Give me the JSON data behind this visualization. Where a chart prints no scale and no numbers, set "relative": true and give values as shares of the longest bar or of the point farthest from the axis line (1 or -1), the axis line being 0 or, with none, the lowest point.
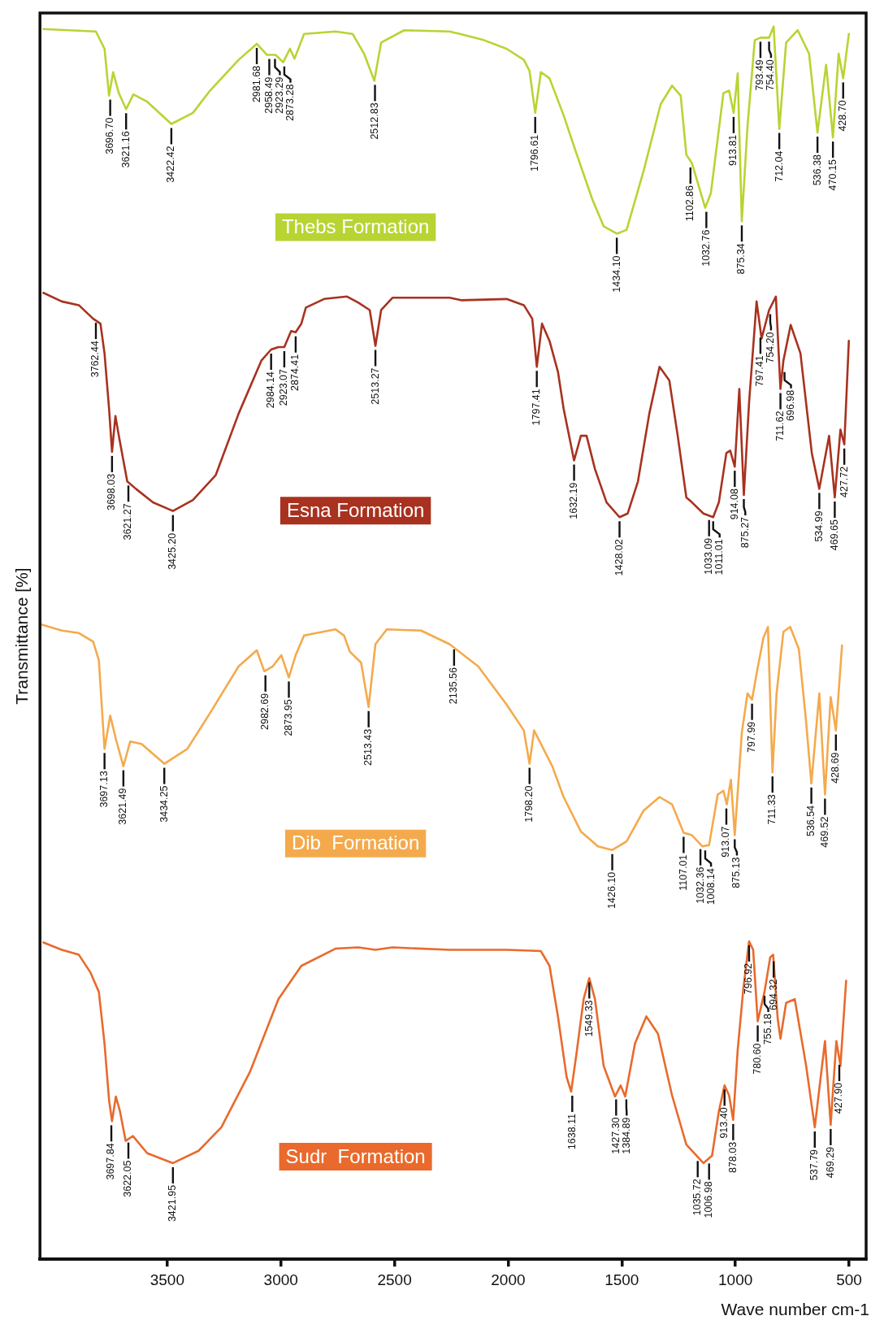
{
  "chart_data": {
    "type": "line",
    "relative": true,
    "xlabel": "Wave number cm-1",
    "ylabel": "Transmittance [%]",
    "xlim": [
      4060,
      425
    ],
    "xticks": [
      3500,
      3000,
      2500,
      2000,
      1500,
      1000,
      500
    ],
    "grid": false,
    "legend": false,
    "series": [
      {
        "name": "Thebs Formation",
        "color": "#b7d433",
        "x": [
          4045,
          3814,
          3776,
          3756,
          3738,
          3713,
          3681,
          3649,
          3588,
          3482,
          3387,
          3312,
          3186,
          3106,
          3061,
          3023,
          2990,
          2960,
          2940,
          2898,
          2760,
          2684,
          2634,
          2589,
          2559,
          2458,
          2258,
          2212,
          2107,
          2007,
          1931,
          1906,
          1881,
          1856,
          1818,
          1756,
          1705,
          1630,
          1580,
          1522,
          1479,
          1404,
          1329,
          1279,
          1241,
          1216,
          1191,
          1133,
          1108,
          1053,
          1028,
          1008,
          990,
          972,
          947,
          915,
          890,
          852,
          832,
          807,
          777,
          726,
          676,
          639,
          601,
          571,
          546,
          526,
          501
        ],
        "values": [
          0.998,
          0.996,
          0.982,
          0.944,
          0.963,
          0.946,
          0.933,
          0.945,
          0.939,
          0.921,
          0.93,
          0.948,
          0.973,
          0.986,
          0.977,
          0.977,
          0.971,
          0.982,
          0.974,
          0.994,
          0.996,
          0.994,
          0.978,
          0.956,
          0.987,
          0.997,
          0.996,
          0.994,
          0.989,
          0.982,
          0.973,
          0.964,
          0.93,
          0.963,
          0.958,
          0.928,
          0.9,
          0.86,
          0.838,
          0.832,
          0.835,
          0.883,
          0.937,
          0.952,
          0.944,
          0.896,
          0.889,
          0.853,
          0.865,
          0.946,
          0.948,
          0.93,
          0.962,
          0.842,
          0.919,
          0.989,
          0.991,
          0.991,
          1.0,
          0.917,
          0.987,
          0.997,
          0.978,
          0.914,
          0.969,
          0.91,
          0.978,
          0.958,
          0.994
        ]
      },
      {
        "name": "Esna Formation",
        "color": "#a8321f",
        "x": [
          4045,
          3964,
          3889,
          3826,
          3794,
          3776,
          3756,
          3743,
          3728,
          3713,
          3676,
          3638,
          3563,
          3475,
          3387,
          3287,
          3186,
          3086,
          3043,
          3011,
          2985,
          2955,
          2935,
          2910,
          2890,
          2810,
          2709,
          2659,
          2609,
          2584,
          2559,
          2509,
          2258,
          2207,
          2007,
          1931,
          1894,
          1874,
          1851,
          1818,
          1781,
          1756,
          1710,
          1680,
          1655,
          1618,
          1567,
          1510,
          1474,
          1429,
          1379,
          1334,
          1291,
          1254,
          1216,
          1191,
          1141,
          1098,
          1073,
          1040,
          1023,
          1003,
          983,
          963,
          940,
          907,
          885,
          852,
          822,
          802,
          789,
          757,
          714,
          664,
          631,
          588,
          563,
          538,
          521,
          501
        ],
        "values": [
          0.784,
          0.777,
          0.774,
          0.763,
          0.759,
          0.735,
          0.69,
          0.655,
          0.684,
          0.668,
          0.631,
          0.625,
          0.614,
          0.607,
          0.616,
          0.636,
          0.686,
          0.729,
          0.738,
          0.74,
          0.74,
          0.753,
          0.752,
          0.759,
          0.772,
          0.779,
          0.781,
          0.776,
          0.77,
          0.741,
          0.77,
          0.78,
          0.78,
          0.778,
          0.779,
          0.774,
          0.763,
          0.724,
          0.759,
          0.745,
          0.72,
          0.69,
          0.648,
          0.668,
          0.668,
          0.641,
          0.614,
          0.602,
          0.605,
          0.631,
          0.686,
          0.724,
          0.713,
          0.668,
          0.618,
          0.614,
          0.605,
          0.602,
          0.614,
          0.654,
          0.656,
          0.643,
          0.706,
          0.62,
          0.695,
          0.777,
          0.747,
          0.77,
          0.781,
          0.706,
          0.729,
          0.758,
          0.735,
          0.654,
          0.625,
          0.668,
          0.618,
          0.673,
          0.661,
          0.745
        ]
      },
      {
        "name": "Dib  Formation",
        "color": "#f4aa4c",
        "x": [
          4055,
          3964,
          3889,
          3826,
          3801,
          3776,
          3751,
          3726,
          3693,
          3663,
          3613,
          3513,
          3412,
          3312,
          3186,
          3106,
          3073,
          3036,
          2998,
          2965,
          2935,
          2898,
          2760,
          2722,
          2697,
          2647,
          2614,
          2584,
          2534,
          2383,
          2258,
          2132,
          2007,
          1931,
          1906,
          1886,
          1806,
          1756,
          1680,
          1605,
          1542,
          1479,
          1404,
          1334,
          1279,
          1228,
          1191,
          1146,
          1116,
          1078,
          1053,
          1038,
          1020,
          1003,
          972,
          947,
          927,
          907,
          877,
          857,
          837,
          819,
          789,
          759,
          721,
          689,
          666,
          631,
          606,
          581,
          558,
          531
        ],
        "values": [
          0.515,
          0.51,
          0.508,
          0.501,
          0.486,
          0.414,
          0.441,
          0.422,
          0.4,
          0.42,
          0.418,
          0.402,
          0.414,
          0.443,
          0.481,
          0.494,
          0.477,
          0.481,
          0.49,
          0.472,
          0.49,
          0.506,
          0.511,
          0.506,
          0.493,
          0.484,
          0.448,
          0.499,
          0.511,
          0.51,
          0.499,
          0.481,
          0.45,
          0.429,
          0.402,
          0.429,
          0.4,
          0.375,
          0.347,
          0.335,
          0.332,
          0.339,
          0.364,
          0.375,
          0.369,
          0.346,
          0.344,
          0.335,
          0.336,
          0.377,
          0.38,
          0.369,
          0.389,
          0.344,
          0.427,
          0.459,
          0.454,
          0.475,
          0.504,
          0.513,
          0.395,
          0.459,
          0.509,
          0.513,
          0.495,
          0.436,
          0.386,
          0.459,
          0.377,
          0.456,
          0.429,
          0.498
        ]
      },
      {
        "name": "Sudr  Formation",
        "color": "#e96a2c",
        "x": [
          4045,
          3964,
          3889,
          3839,
          3801,
          3776,
          3756,
          3743,
          3726,
          3708,
          3683,
          3651,
          3588,
          3475,
          3362,
          3262,
          3136,
          3011,
          2910,
          2760,
          2659,
          2584,
          2509,
          2258,
          2007,
          1856,
          1818,
          1781,
          1743,
          1723,
          1700,
          1668,
          1643,
          1618,
          1580,
          1530,
          1505,
          1485,
          1442,
          1392,
          1341,
          1279,
          1216,
          1141,
          1103,
          1073,
          1048,
          1028,
          1010,
          990,
          965,
          940,
          922,
          902,
          872,
          847,
          834,
          814,
          802,
          777,
          739,
          689,
          651,
          606,
          581,
          556,
          538,
          513
        ],
        "values": [
          0.257,
          0.251,
          0.247,
          0.233,
          0.217,
          0.175,
          0.129,
          0.112,
          0.132,
          0.12,
          0.096,
          0.1,
          0.086,
          0.078,
          0.088,
          0.107,
          0.152,
          0.211,
          0.238,
          0.252,
          0.253,
          0.251,
          0.253,
          0.251,
          0.251,
          0.25,
          0.238,
          0.197,
          0.148,
          0.136,
          0.166,
          0.211,
          0.228,
          0.211,
          0.157,
          0.132,
          0.141,
          0.132,
          0.175,
          0.197,
          0.183,
          0.133,
          0.093,
          0.078,
          0.084,
          0.12,
          0.141,
          0.133,
          0.113,
          0.17,
          0.22,
          0.258,
          0.251,
          0.193,
          0.217,
          0.245,
          0.247,
          0.195,
          0.179,
          0.208,
          0.211,
          0.157,
          0.107,
          0.177,
          0.109,
          0.177,
          0.157,
          0.226
        ]
      }
    ],
    "annotations": [
      {
        "text": "3696.70",
        "x": 3751,
        "y": 0.944
      },
      {
        "text": "3621.16",
        "x": 3681,
        "y": 0.933
      },
      {
        "text": "3422.42",
        "x": 3482,
        "y": 0.921
      },
      {
        "text": "2981.68",
        "x": 3106,
        "y": 0.986
      },
      {
        "text": "2958.49",
        "x": 3051,
        "y": 0.977
      },
      {
        "text": "2923.29",
        "x": 3026,
        "y": 0.977
      },
      {
        "text": "2873.28",
        "x": 2985,
        "y": 0.971
      },
      {
        "text": "2512.83",
        "x": 2586,
        "y": 0.956
      },
      {
        "text": "1796.61",
        "x": 1881,
        "y": 0.93
      },
      {
        "text": "1434.10",
        "x": 1522,
        "y": 0.832
      },
      {
        "text": "1102.86",
        "x": 1198,
        "y": 0.889
      },
      {
        "text": "1032.76",
        "x": 1128,
        "y": 0.853
      },
      {
        "text": "913.81",
        "x": 1008,
        "y": 0.93
      },
      {
        "text": "875.34",
        "x": 972,
        "y": 0.842
      },
      {
        "text": "793.49",
        "x": 890,
        "y": 0.991
      },
      {
        "text": "754.40",
        "x": 852,
        "y": 0.991
      },
      {
        "text": "712.04",
        "x": 807,
        "y": 0.917
      },
      {
        "text": "536.38",
        "x": 639,
        "y": 0.914
      },
      {
        "text": "470.15",
        "x": 571,
        "y": 0.91
      },
      {
        "text": "428.70",
        "x": 526,
        "y": 0.958
      },
      {
        "text": "3762.44",
        "x": 3814,
        "y": 0.763
      },
      {
        "text": "3698.03",
        "x": 3743,
        "y": 0.655
      },
      {
        "text": "3621.27",
        "x": 3671,
        "y": 0.631
      },
      {
        "text": "3425.20",
        "x": 3475,
        "y": 0.607
      },
      {
        "text": "2984.14",
        "x": 3043,
        "y": 0.738
      },
      {
        "text": "2923.07",
        "x": 2985,
        "y": 0.74
      },
      {
        "text": "2874.41",
        "x": 2935,
        "y": 0.752
      },
      {
        "text": "2513.27",
        "x": 2584,
        "y": 0.741
      },
      {
        "text": "1797.41",
        "x": 1874,
        "y": 0.724
      },
      {
        "text": "1632.19",
        "x": 1710,
        "y": 0.648
      },
      {
        "text": "1428.02",
        "x": 1510,
        "y": 0.602
      },
      {
        "text": "1033.09",
        "x": 1116,
        "y": 0.603
      },
      {
        "text": "1011.01",
        "x": 1098,
        "y": 0.602
      },
      {
        "text": "914.08",
        "x": 1003,
        "y": 0.643
      },
      {
        "text": "875.27",
        "x": 963,
        "y": 0.62
      },
      {
        "text": "797.41",
        "x": 890,
        "y": 0.751
      },
      {
        "text": "754.20",
        "x": 847,
        "y": 0.77
      },
      {
        "text": "711.62",
        "x": 802,
        "y": 0.706
      },
      {
        "text": "696.98",
        "x": 784,
        "y": 0.723
      },
      {
        "text": "534.99",
        "x": 631,
        "y": 0.625
      },
      {
        "text": "469.65",
        "x": 563,
        "y": 0.618
      },
      {
        "text": "427.72",
        "x": 521,
        "y": 0.661
      },
      {
        "text": "3697.13",
        "x": 3776,
        "y": 0.414
      },
      {
        "text": "3621.49",
        "x": 3693,
        "y": 0.4
      },
      {
        "text": "3434.25",
        "x": 3513,
        "y": 0.402
      },
      {
        "text": "2982.69",
        "x": 3068,
        "y": 0.477
      },
      {
        "text": "2873.95",
        "x": 2965,
        "y": 0.472
      },
      {
        "text": "2513.43",
        "x": 2614,
        "y": 0.448
      },
      {
        "text": "2135.56",
        "x": 2238,
        "y": 0.498
      },
      {
        "text": "1798.20",
        "x": 1906,
        "y": 0.402
      },
      {
        "text": "1426.10",
        "x": 1542,
        "y": 0.332
      },
      {
        "text": "1107.01",
        "x": 1228,
        "y": 0.346
      },
      {
        "text": "1032.36",
        "x": 1154,
        "y": 0.336
      },
      {
        "text": "1008.14",
        "x": 1133,
        "y": 0.335
      },
      {
        "text": "913.07",
        "x": 1040,
        "y": 0.369
      },
      {
        "text": "875.13",
        "x": 1003,
        "y": 0.344
      },
      {
        "text": "797.99",
        "x": 927,
        "y": 0.454
      },
      {
        "text": "711.33",
        "x": 837,
        "y": 0.395
      },
      {
        "text": "536.54",
        "x": 666,
        "y": 0.386
      },
      {
        "text": "469.52",
        "x": 606,
        "y": 0.377
      },
      {
        "text": "428.69",
        "x": 558,
        "y": 0.429
      },
      {
        "text": "3697.84",
        "x": 3746,
        "y": 0.112
      },
      {
        "text": "3622.05",
        "x": 3671,
        "y": 0.098
      },
      {
        "text": "3421.95",
        "x": 3475,
        "y": 0.078
      },
      {
        "text": "1638.11",
        "x": 1718,
        "y": 0.136
      },
      {
        "text": "1549.33",
        "x": 1643,
        "y": 0.228
      },
      {
        "text": "1427.30",
        "x": 1525,
        "y": 0.133
      },
      {
        "text": "1384.89",
        "x": 1480,
        "y": 0.133
      },
      {
        "text": "1035.72",
        "x": 1166,
        "y": 0.083
      },
      {
        "text": "1006.98",
        "x": 1116,
        "y": 0.081
      },
      {
        "text": "913.40",
        "x": 1048,
        "y": 0.141
      },
      {
        "text": "878.03",
        "x": 1010,
        "y": 0.113
      },
      {
        "text": "796.92",
        "x": 940,
        "y": 0.258
      },
      {
        "text": "780.60",
        "x": 902,
        "y": 0.193
      },
      {
        "text": "755.18",
        "x": 872,
        "y": 0.217
      },
      {
        "text": "694.32",
        "x": 832,
        "y": 0.245
      },
      {
        "text": "537.79",
        "x": 651,
        "y": 0.107
      },
      {
        "text": "469.29",
        "x": 581,
        "y": 0.109
      },
      {
        "text": "427.90",
        "x": 543,
        "y": 0.161
      }
    ]
  }
}
